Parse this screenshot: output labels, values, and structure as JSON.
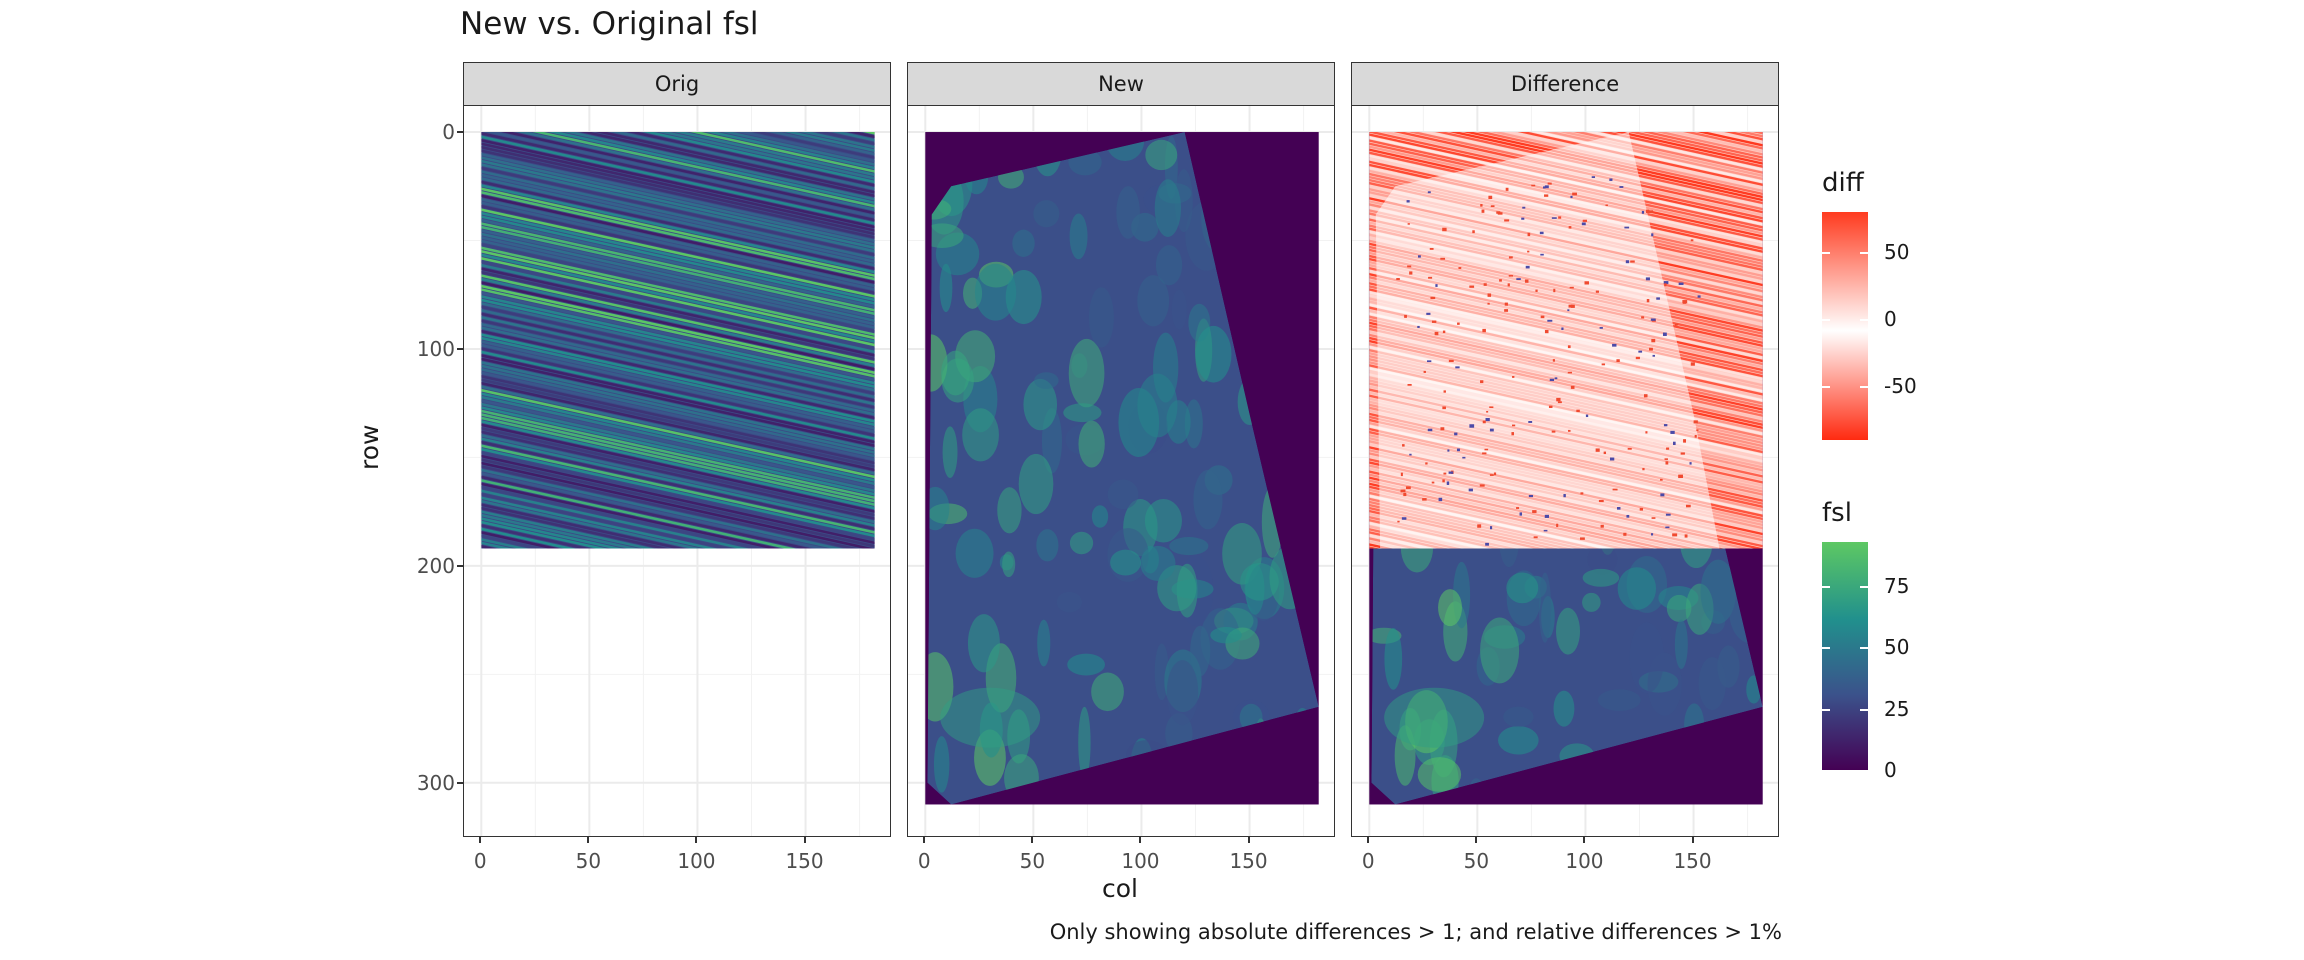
{
  "title": "New vs. Original fsl",
  "xlabel": "col",
  "ylabel": "row",
  "caption": "Only showing absolute differences > 1; and relative differences > 1%",
  "facets": [
    "Orig",
    "New",
    "Difference"
  ],
  "legends": {
    "diff": {
      "title": "diff",
      "ticks": [
        "50",
        "0",
        "-50"
      ],
      "colors": {
        "high": "#ff3b1f",
        "mid": "#ffffff",
        "low": "#ff2a10"
      }
    },
    "fsl": {
      "title": "fsl",
      "ticks": [
        "75",
        "50",
        "25",
        "0"
      ],
      "colors": [
        "#440154",
        "#3b528b",
        "#21908d",
        "#5dc863"
      ]
    }
  },
  "chart_data": {
    "type": "heatmap",
    "title": "New vs. Original fsl",
    "xlabel": "col",
    "ylabel": "row",
    "facets": [
      "Orig",
      "New",
      "Difference"
    ],
    "x_ticks": [
      0,
      50,
      100,
      150
    ],
    "y_ticks": [
      0,
      100,
      200,
      300
    ],
    "xlim": [
      -8,
      190
    ],
    "ylim": [
      325,
      -12
    ],
    "y_reversed": true,
    "grid": true,
    "orig_extent": {
      "cols": [
        0,
        182
      ],
      "rows": [
        0,
        192
      ]
    },
    "new_extent": {
      "cols": [
        0,
        182
      ],
      "rows": [
        0,
        310
      ]
    },
    "fsl_range": [
      0,
      93
    ],
    "diff_range": [
      -90,
      80
    ],
    "legend_placement": "right"
  }
}
